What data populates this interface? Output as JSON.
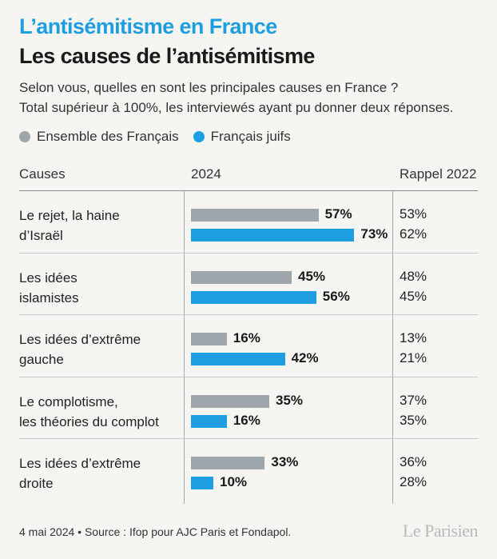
{
  "header": {
    "kicker": "L’antisémitisme en France",
    "title": "Les causes de l’antisémitisme",
    "subtitle_lines": [
      "Selon vous, quelles en sont les principales causes en France ?",
      "Total supérieur à 100%, les interviewés ayant pu donner deux réponses."
    ]
  },
  "columns": {
    "causes": "Causes",
    "year": "2024",
    "recall": "Rappel 2022"
  },
  "colors": {
    "ensemble": "#9ea5ab",
    "juifs": "#1e9ee0"
  },
  "chart_data": {
    "type": "bar",
    "orientation": "horizontal",
    "categories": [
      [
        "Le rejet, la haine",
        "d’Israël"
      ],
      [
        "Les idées",
        "islamistes"
      ],
      [
        "Les idées d’extrême",
        "gauche"
      ],
      [
        "Le complotisme,",
        "les théories du complot"
      ],
      [
        "Les idées d’extrême",
        "droite"
      ]
    ],
    "series": [
      {
        "name": "Ensemble des Français",
        "values": [
          57,
          45,
          16,
          35,
          33
        ],
        "recall_2022": [
          "53%",
          "48%",
          "13%",
          "37%",
          "36%"
        ]
      },
      {
        "name": "Français juifs",
        "values": [
          73,
          56,
          42,
          16,
          10
        ],
        "recall_2022": [
          "62%",
          "45%",
          "21%",
          "35%",
          "28%"
        ]
      }
    ],
    "unit": "%"
  },
  "footer": {
    "source": "4 mai 2024 • Source : Ifop pour AJC Paris et Fondapol.",
    "logo": "Le Parisien"
  }
}
